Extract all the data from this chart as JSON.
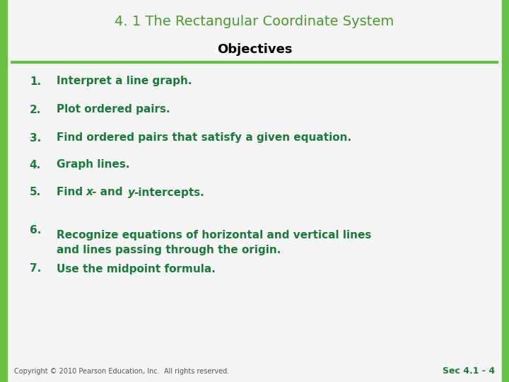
{
  "title": "4. 1 The Rectangular Coordinate System",
  "subtitle": "Objectives",
  "title_color": "#4a9a2e",
  "subtitle_color": "#000000",
  "green_color": "#6abf47",
  "dark_green_text": "#1a7a3a",
  "bg_color": "#f5f5f5",
  "border_color": "#6abf47",
  "items": [
    {
      "num": "1.",
      "text": "Interpret a line graph."
    },
    {
      "num": "2.",
      "text": "Plot ordered pairs."
    },
    {
      "num": "3.",
      "text": "Find ordered pairs that satisfy a given equation."
    },
    {
      "num": "4.",
      "text": "Graph lines."
    },
    {
      "num": "5.",
      "text_parts": [
        {
          "t": "Find ",
          "italic": false
        },
        {
          "t": "x",
          "italic": true
        },
        {
          "t": "- and ",
          "italic": false
        },
        {
          "t": "y",
          "italic": true
        },
        {
          "t": "-intercepts.",
          "italic": false
        }
      ]
    },
    {
      "num": "6.",
      "text": "Recognize equations of horizontal and vertical lines\nand lines passing through the origin."
    },
    {
      "num": "7.",
      "text": "Use the midpoint formula."
    }
  ],
  "footer_left": "Copyright © 2010 Pearson Education, Inc.  All rights reserved.",
  "footer_right": "Sec 4.1 - 4",
  "title_fontsize": 14,
  "subtitle_fontsize": 13,
  "item_fontsize": 11,
  "footer_fontsize": 7
}
